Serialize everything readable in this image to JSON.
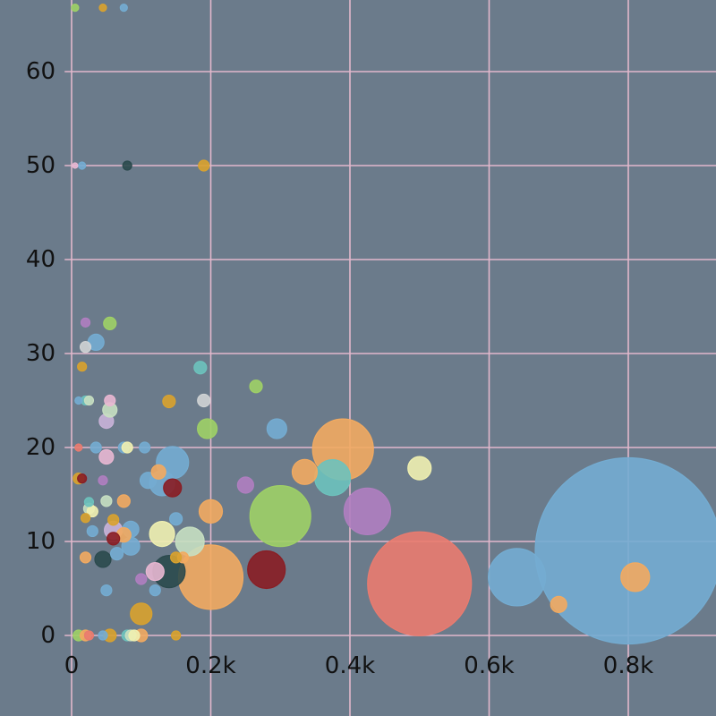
{
  "colors": {
    "background": "#6b7b8b",
    "grid": "#e2b8cc",
    "tick_text": "#111111"
  },
  "chart_data": {
    "type": "scatter",
    "variant": "bubble",
    "title": "",
    "xlabel": "",
    "ylabel": "",
    "grid": true,
    "legend": "none",
    "xlim": [
      -10,
      930
    ],
    "ylim": [
      -0.5,
      67.5
    ],
    "x_ticks": [
      {
        "value": 0,
        "label": "0"
      },
      {
        "value": 200,
        "label": "0.2k"
      },
      {
        "value": 400,
        "label": "0.4k"
      },
      {
        "value": 600,
        "label": "0.6k"
      },
      {
        "value": 800,
        "label": "0.8k"
      }
    ],
    "y_ticks": [
      {
        "value": 0,
        "label": "0"
      },
      {
        "value": 10,
        "label": "10"
      },
      {
        "value": 20,
        "label": "20"
      },
      {
        "value": 30,
        "label": "30"
      },
      {
        "value": 40,
        "label": "40"
      },
      {
        "value": 50,
        "label": "50"
      },
      {
        "value": 60,
        "label": "60"
      }
    ],
    "points": [
      {
        "x": 800,
        "y": 9,
        "r": 104,
        "color": "#74acd1"
      },
      {
        "x": 500,
        "y": 5.5,
        "r": 58,
        "color": "#ea7b6f"
      },
      {
        "x": 640,
        "y": 6.2,
        "r": 32,
        "color": "#74acd1"
      },
      {
        "x": 390,
        "y": 19.8,
        "r": 34,
        "color": "#f2aa60"
      },
      {
        "x": 300,
        "y": 12.7,
        "r": 34,
        "color": "#9fd066"
      },
      {
        "x": 200,
        "y": 6.2,
        "r": 36,
        "color": "#f2aa60"
      },
      {
        "x": 425,
        "y": 13.2,
        "r": 26,
        "color": "#b07ec0"
      },
      {
        "x": 375,
        "y": 16.8,
        "r": 20,
        "color": "#6dc2bc"
      },
      {
        "x": 280,
        "y": 7,
        "r": 21,
        "color": "#8a1d23"
      },
      {
        "x": 145,
        "y": 18.4,
        "r": 18,
        "color": "#74acd1"
      },
      {
        "x": 140,
        "y": 6.8,
        "r": 18,
        "color": "#2b4a4d"
      },
      {
        "x": 170,
        "y": 10,
        "r": 16,
        "color": "#c7dfc1"
      },
      {
        "x": 130,
        "y": 16.2,
        "r": 14,
        "color": "#74acd1"
      },
      {
        "x": 130,
        "y": 10.8,
        "r": 14,
        "color": "#f0f0b0"
      },
      {
        "x": 335,
        "y": 17.4,
        "r": 14,
        "color": "#f2aa60"
      },
      {
        "x": 500,
        "y": 17.8,
        "r": 13,
        "color": "#f0f0b0"
      },
      {
        "x": 200,
        "y": 13.2,
        "r": 13,
        "color": "#f2aa60"
      },
      {
        "x": 810,
        "y": 6.2,
        "r": 16,
        "color": "#f2aa60"
      },
      {
        "x": 700,
        "y": 3.3,
        "r": 9,
        "color": "#f2aa60"
      },
      {
        "x": 295,
        "y": 22,
        "r": 11,
        "color": "#74acd1"
      },
      {
        "x": 195,
        "y": 22,
        "r": 11,
        "color": "#9fd066"
      },
      {
        "x": 265,
        "y": 26.5,
        "r": 7,
        "color": "#9fd066"
      },
      {
        "x": 250,
        "y": 16,
        "r": 9,
        "color": "#b07ec0"
      },
      {
        "x": 145,
        "y": 15.7,
        "r": 10,
        "color": "#8a1d23"
      },
      {
        "x": 125,
        "y": 17.4,
        "r": 8,
        "color": "#f2aa60"
      },
      {
        "x": 100,
        "y": 2.3,
        "r": 12,
        "color": "#d9a22e"
      },
      {
        "x": 120,
        "y": 6.8,
        "r": 10,
        "color": "#e8b7d1"
      },
      {
        "x": 85,
        "y": 9.5,
        "r": 10,
        "color": "#74acd1"
      },
      {
        "x": 85,
        "y": 11.3,
        "r": 9,
        "color": "#74acd1"
      },
      {
        "x": 60,
        "y": 11.2,
        "r": 10,
        "color": "#c9b3d8"
      },
      {
        "x": 75,
        "y": 10.7,
        "r": 8,
        "color": "#f2aa60"
      },
      {
        "x": 60,
        "y": 10.3,
        "r": 7,
        "color": "#8a1d23"
      },
      {
        "x": 45,
        "y": 8.1,
        "r": 9,
        "color": "#2b4a4d"
      },
      {
        "x": 65,
        "y": 8.7,
        "r": 7,
        "color": "#74acd1"
      },
      {
        "x": 50,
        "y": 19,
        "r": 8,
        "color": "#e8b7d1"
      },
      {
        "x": 50,
        "y": 22.8,
        "r": 8,
        "color": "#c9b3d8"
      },
      {
        "x": 55,
        "y": 24,
        "r": 8,
        "color": "#c7dfc1"
      },
      {
        "x": 35,
        "y": 31.2,
        "r": 9,
        "color": "#74acd1"
      },
      {
        "x": 55,
        "y": 33.2,
        "r": 7,
        "color": "#9fd066"
      },
      {
        "x": 185,
        "y": 28.5,
        "r": 7,
        "color": "#6dc2bc"
      },
      {
        "x": 190,
        "y": 25,
        "r": 7,
        "color": "#d0d3d4"
      },
      {
        "x": 140,
        "y": 24.9,
        "r": 7,
        "color": "#d9a22e"
      },
      {
        "x": 80,
        "y": 50,
        "r": 5,
        "color": "#2b4a4d"
      },
      {
        "x": 190,
        "y": 50,
        "r": 6,
        "color": "#d9a22e"
      },
      {
        "x": 15,
        "y": 50,
        "r": 4,
        "color": "#74acd1"
      },
      {
        "x": 5,
        "y": 50,
        "r": 3,
        "color": "#e8b7d1"
      },
      {
        "x": 5,
        "y": 66.8,
        "r": 4,
        "color": "#9fd066"
      },
      {
        "x": 45,
        "y": 66.8,
        "r": 4,
        "color": "#d9a22e"
      },
      {
        "x": 75,
        "y": 66.8,
        "r": 4,
        "color": "#74acd1"
      },
      {
        "x": 20,
        "y": 33.3,
        "r": 5,
        "color": "#b07ec0"
      },
      {
        "x": 20,
        "y": 30.7,
        "r": 6,
        "color": "#d0d3d4"
      },
      {
        "x": 15,
        "y": 28.6,
        "r": 5,
        "color": "#d9a22e"
      },
      {
        "x": 10,
        "y": 25,
        "r": 4,
        "color": "#74acd1"
      },
      {
        "x": 20,
        "y": 25,
        "r": 5,
        "color": "#6dc2bc"
      },
      {
        "x": 25,
        "y": 25,
        "r": 5,
        "color": "#c7dfc1"
      },
      {
        "x": 55,
        "y": 25,
        "r": 6,
        "color": "#e8b7d1"
      },
      {
        "x": 10,
        "y": 20,
        "r": 4,
        "color": "#ea7b6f"
      },
      {
        "x": 35,
        "y": 20,
        "r": 6,
        "color": "#74acd1"
      },
      {
        "x": 75,
        "y": 20,
        "r": 6,
        "color": "#74acd1"
      },
      {
        "x": 80,
        "y": 20,
        "r": 6,
        "color": "#f0f0b0"
      },
      {
        "x": 105,
        "y": 20,
        "r": 6,
        "color": "#74acd1"
      },
      {
        "x": 110,
        "y": 16.5,
        "r": 9,
        "color": "#74acd1"
      },
      {
        "x": 10,
        "y": 16.7,
        "r": 6,
        "color": "#d9a22e"
      },
      {
        "x": 15,
        "y": 16.7,
        "r": 5,
        "color": "#8a1d23"
      },
      {
        "x": 45,
        "y": 16.5,
        "r": 5,
        "color": "#b07ec0"
      },
      {
        "x": 25,
        "y": 14.2,
        "r": 5,
        "color": "#6dc2bc"
      },
      {
        "x": 25,
        "y": 13.5,
        "r": 6,
        "color": "#c7dfc1"
      },
      {
        "x": 30,
        "y": 13.2,
        "r": 6,
        "color": "#f0f0b0"
      },
      {
        "x": 20,
        "y": 12.5,
        "r": 5,
        "color": "#d9a22e"
      },
      {
        "x": 50,
        "y": 14.3,
        "r": 6,
        "color": "#c7dfc1"
      },
      {
        "x": 75,
        "y": 14.3,
        "r": 7,
        "color": "#f2aa60"
      },
      {
        "x": 30,
        "y": 11.1,
        "r": 6,
        "color": "#74acd1"
      },
      {
        "x": 60,
        "y": 12.3,
        "r": 6,
        "color": "#d9a22e"
      },
      {
        "x": 150,
        "y": 12.4,
        "r": 7,
        "color": "#74acd1"
      },
      {
        "x": 20,
        "y": 8.3,
        "r": 6,
        "color": "#f2aa60"
      },
      {
        "x": 50,
        "y": 4.8,
        "r": 6,
        "color": "#74acd1"
      },
      {
        "x": 120,
        "y": 4.8,
        "r": 6,
        "color": "#74acd1"
      },
      {
        "x": 100,
        "y": 6,
        "r": 6,
        "color": "#b07ec0"
      },
      {
        "x": 160,
        "y": 8.3,
        "r": 6,
        "color": "#f2aa60"
      },
      {
        "x": 150,
        "y": 8.3,
        "r": 6,
        "color": "#d9a22e"
      },
      {
        "x": 10,
        "y": 0,
        "r": 6,
        "color": "#9fd066"
      },
      {
        "x": 20,
        "y": 0,
        "r": 6,
        "color": "#f2aa60"
      },
      {
        "x": 25,
        "y": 0,
        "r": 5,
        "color": "#ea7b6f"
      },
      {
        "x": 45,
        "y": 0,
        "r": 5,
        "color": "#74acd1"
      },
      {
        "x": 55,
        "y": 0,
        "r": 7,
        "color": "#d9a22e"
      },
      {
        "x": 80,
        "y": 0,
        "r": 6,
        "color": "#6dc2bc"
      },
      {
        "x": 85,
        "y": 0,
        "r": 6,
        "color": "#c7dfc1"
      },
      {
        "x": 90,
        "y": 0,
        "r": 6,
        "color": "#f0f0b0"
      },
      {
        "x": 100,
        "y": 0,
        "r": 7,
        "color": "#f2aa60"
      },
      {
        "x": 150,
        "y": 0,
        "r": 5,
        "color": "#d9a22e"
      }
    ]
  }
}
